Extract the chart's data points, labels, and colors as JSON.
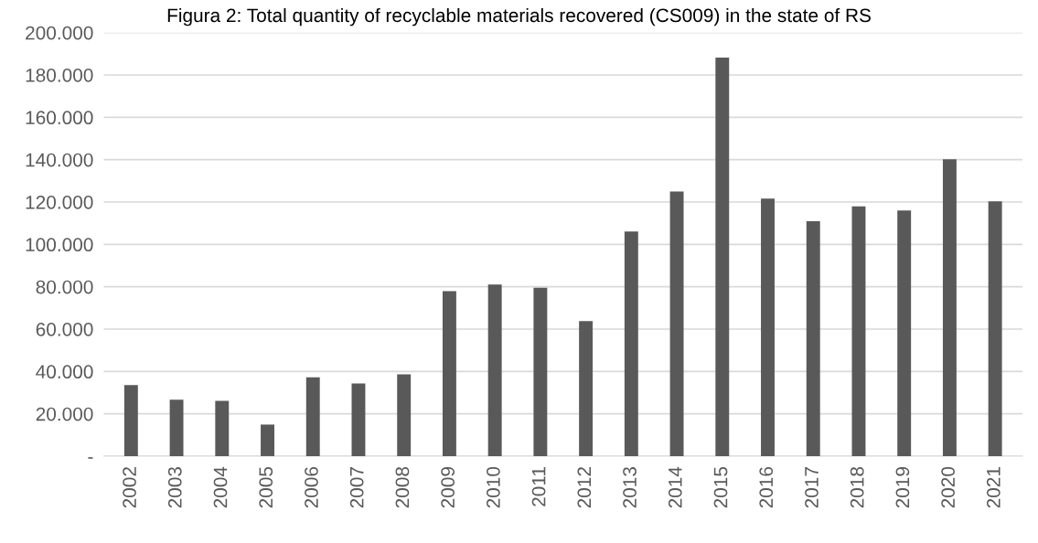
{
  "chart_data": {
    "type": "bar",
    "title": "Figura 2: Total quantity of recyclable materials recovered (CS009) in the state of RS",
    "categories": [
      "2002",
      "2003",
      "2004",
      "2005",
      "2006",
      "2007",
      "2008",
      "2009",
      "2010",
      "2011",
      "2012",
      "2013",
      "2014",
      "2015",
      "2016",
      "2017",
      "2018",
      "2019",
      "2020",
      "2021"
    ],
    "values": [
      33500,
      26600,
      26100,
      14900,
      37200,
      34300,
      38600,
      77900,
      81000,
      79500,
      63800,
      106100,
      125000,
      188200,
      121600,
      110900,
      117900,
      116000,
      140200,
      120300
    ],
    "color": "#595959",
    "ylim": [
      0,
      200000
    ],
    "yticks": [
      {
        "value": 0,
        "label": "-"
      },
      {
        "value": 20000,
        "label": "20.000"
      },
      {
        "value": 40000,
        "label": "40.000"
      },
      {
        "value": 60000,
        "label": "60.000"
      },
      {
        "value": 80000,
        "label": "80.000"
      },
      {
        "value": 100000,
        "label": "100.000"
      },
      {
        "value": 120000,
        "label": "120.000"
      },
      {
        "value": 140000,
        "label": "140.000"
      },
      {
        "value": 160000,
        "label": "160.000"
      },
      {
        "value": 180000,
        "label": "180.000"
      },
      {
        "value": 200000,
        "label": "200.000"
      }
    ],
    "grid": "y"
  }
}
